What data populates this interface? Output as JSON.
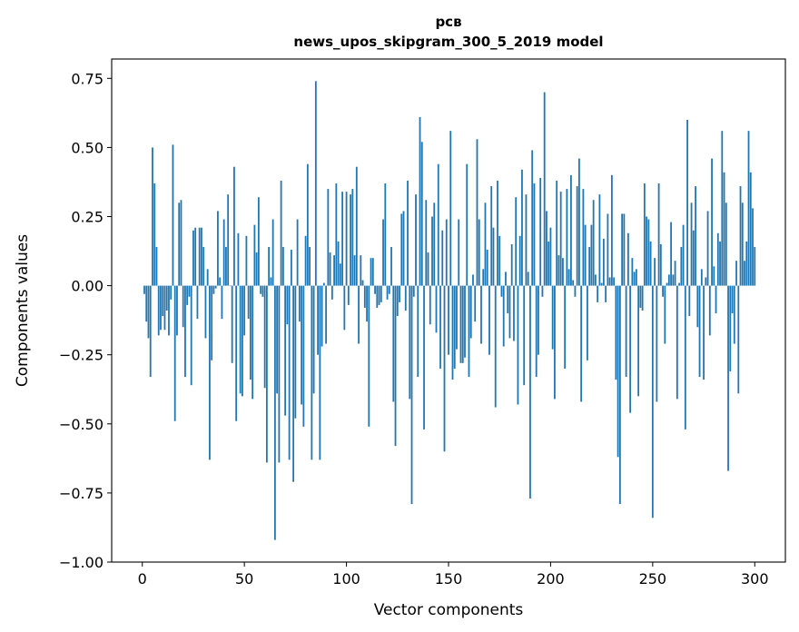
{
  "chart_data": {
    "type": "bar",
    "title": "рсв",
    "subtitle": "news_upos_skipgram_300_5_2019 model",
    "xlabel": "Vector components",
    "ylabel": "Components values",
    "xlim": [
      -15,
      315
    ],
    "ylim": [
      -1.0,
      0.82
    ],
    "xticks": [
      0,
      50,
      100,
      150,
      200,
      250,
      300
    ],
    "xtick_labels": [
      "0",
      "50",
      "100",
      "150",
      "200",
      "250",
      "300"
    ],
    "yticks": [
      -1.0,
      -0.75,
      -0.5,
      -0.25,
      0.0,
      0.25,
      0.5,
      0.75
    ],
    "ytick_labels": [
      "−1.00",
      "−0.75",
      "−0.50",
      "−0.25",
      "0.00",
      "0.25",
      "0.50",
      "0.75"
    ],
    "bar_color": "#1f77b4",
    "categories_start": 1,
    "values": [
      -0.03,
      -0.13,
      -0.19,
      -0.33,
      0.5,
      0.37,
      0.14,
      -0.18,
      -0.16,
      -0.11,
      -0.16,
      -0.09,
      -0.18,
      -0.05,
      0.51,
      -0.49,
      -0.18,
      0.3,
      0.31,
      -0.15,
      -0.33,
      -0.07,
      -0.04,
      -0.36,
      0.2,
      0.21,
      -0.12,
      0.21,
      0.21,
      0.14,
      -0.19,
      0.06,
      -0.63,
      -0.27,
      -0.03,
      -0.01,
      0.27,
      0.03,
      -0.12,
      0.24,
      0.14,
      0.33,
      0.0,
      -0.28,
      0.43,
      -0.49,
      0.19,
      -0.39,
      -0.4,
      -0.18,
      0.18,
      -0.12,
      -0.34,
      -0.41,
      0.22,
      0.12,
      0.32,
      -0.03,
      -0.04,
      -0.37,
      -0.64,
      0.14,
      0.03,
      0.24,
      -0.92,
      -0.39,
      -0.64,
      0.38,
      0.14,
      -0.47,
      -0.14,
      -0.63,
      0.13,
      -0.71,
      -0.48,
      0.24,
      -0.13,
      -0.43,
      -0.51,
      0.18,
      0.44,
      0.14,
      -0.63,
      -0.39,
      0.74,
      -0.25,
      -0.63,
      -0.22,
      0.01,
      -0.21,
      0.35,
      0.12,
      -0.05,
      0.11,
      0.37,
      0.16,
      0.08,
      0.34,
      -0.16,
      0.34,
      -0.07,
      0.33,
      0.35,
      0.11,
      0.43,
      -0.21,
      0.11,
      0.02,
      -0.08,
      -0.13,
      -0.51,
      0.1,
      0.1,
      -0.03,
      -0.08,
      -0.07,
      -0.06,
      0.24,
      0.37,
      -0.05,
      -0.03,
      0.14,
      -0.42,
      -0.58,
      -0.11,
      -0.06,
      0.26,
      0.27,
      -0.09,
      0.38,
      -0.41,
      -0.79,
      -0.04,
      0.33,
      -0.33,
      0.61,
      0.52,
      -0.52,
      0.31,
      0.12,
      -0.14,
      0.25,
      0.3,
      -0.17,
      0.44,
      -0.3,
      0.2,
      -0.6,
      0.24,
      -0.25,
      0.56,
      -0.34,
      -0.3,
      -0.23,
      0.24,
      -0.28,
      -0.28,
      -0.26,
      0.44,
      -0.33,
      -0.19,
      0.04,
      -0.13,
      0.53,
      0.24,
      -0.21,
      0.06,
      0.3,
      0.13,
      -0.25,
      0.36,
      0.21,
      -0.44,
      0.38,
      0.18,
      -0.04,
      -0.22,
      0.05,
      -0.1,
      -0.19,
      0.15,
      -0.2,
      0.32,
      -0.43,
      0.18,
      0.42,
      -0.36,
      0.33,
      0.05,
      -0.77,
      0.49,
      0.37,
      -0.33,
      -0.25,
      0.39,
      -0.04,
      0.7,
      0.27,
      0.16,
      0.21,
      -0.23,
      -0.41,
      0.38,
      0.11,
      0.34,
      0.1,
      -0.3,
      0.35,
      0.06,
      0.4,
      0.02,
      -0.04,
      0.36,
      0.46,
      -0.42,
      0.35,
      0.22,
      -0.27,
      0.14,
      0.22,
      0.31,
      0.04,
      -0.06,
      0.33,
      0.01,
      0.17,
      -0.06,
      0.26,
      0.03,
      0.4,
      0.03,
      -0.34,
      -0.62,
      -0.79,
      0.26,
      0.26,
      -0.33,
      0.19,
      -0.46,
      0.1,
      0.05,
      0.06,
      -0.4,
      -0.08,
      -0.09,
      0.37,
      0.25,
      0.24,
      0.16,
      -0.84,
      0.1,
      -0.42,
      0.37,
      0.15,
      -0.04,
      -0.21,
      0.01,
      0.04,
      0.23,
      0.04,
      0.09,
      -0.41,
      0.01,
      0.14,
      0.22,
      -0.52,
      0.6,
      -0.11,
      0.3,
      0.2,
      0.36,
      -0.15,
      -0.33,
      0.06,
      -0.34,
      0.03,
      0.27,
      -0.18,
      0.46,
      0.07,
      -0.1,
      0.19,
      0.16,
      0.56,
      0.41,
      0.3,
      -0.67,
      -0.31,
      -0.1,
      -0.21,
      0.09,
      -0.39,
      0.36,
      0.3,
      0.09,
      0.16,
      0.56,
      0.41,
      0.28,
      0.14
    ]
  }
}
